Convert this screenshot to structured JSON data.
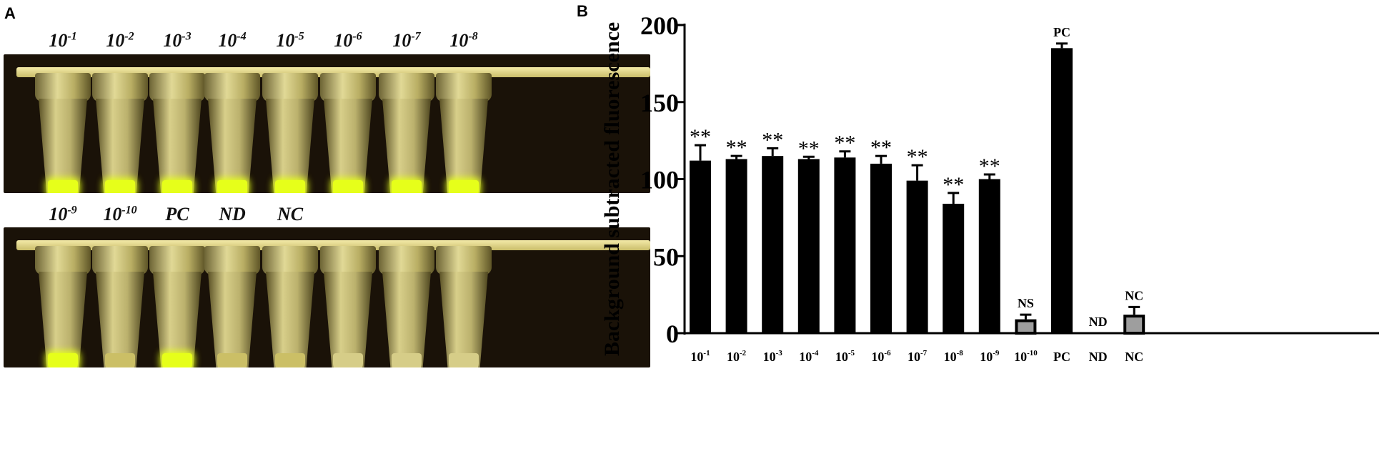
{
  "panel_a": {
    "letter": "A",
    "top_row_labels": [
      {
        "base": "10",
        "exp": "-1"
      },
      {
        "base": "10",
        "exp": "-2"
      },
      {
        "base": "10",
        "exp": "-3"
      },
      {
        "base": "10",
        "exp": "-4"
      },
      {
        "base": "10",
        "exp": "-5"
      },
      {
        "base": "10",
        "exp": "-6"
      },
      {
        "base": "10",
        "exp": "-7"
      },
      {
        "base": "10",
        "exp": "-8"
      }
    ],
    "bottom_row_labels": [
      {
        "base": "10",
        "exp": "-9"
      },
      {
        "base": "10",
        "exp": "-10"
      },
      {
        "base": "PC",
        "exp": ""
      },
      {
        "base": "ND",
        "exp": ""
      },
      {
        "base": "NC",
        "exp": ""
      }
    ],
    "top_tube_fluorescence": [
      "bright",
      "bright",
      "bright",
      "bright",
      "bright",
      "bright",
      "bright",
      "bright"
    ],
    "bottom_tube_fluorescence": [
      "bright",
      "faint",
      "bright",
      "faint",
      "faint",
      "none",
      "none",
      "none"
    ],
    "colors": {
      "bright": "#e6ff1a",
      "faint": "#cbbf66",
      "none": "#d6cd88"
    }
  },
  "panel_b": {
    "letter": "B",
    "chart_data": {
      "type": "bar",
      "ylabel": "Background subtracted fluorescence",
      "ylim": [
        0,
        200
      ],
      "yticks": [
        "0",
        "50",
        "100",
        "150",
        "200"
      ],
      "categories": [
        {
          "base": "10",
          "exp": "-1"
        },
        {
          "base": "10",
          "exp": "-2"
        },
        {
          "base": "10",
          "exp": "-3"
        },
        {
          "base": "10",
          "exp": "-4"
        },
        {
          "base": "10",
          "exp": "-5"
        },
        {
          "base": "10",
          "exp": "-6"
        },
        {
          "base": "10",
          "exp": "-7"
        },
        {
          "base": "10",
          "exp": "-8"
        },
        {
          "base": "10",
          "exp": "-9"
        },
        {
          "base": "10",
          "exp": "-10"
        },
        {
          "base": "PC",
          "exp": ""
        },
        {
          "base": "ND",
          "exp": ""
        },
        {
          "base": "NC",
          "exp": ""
        }
      ],
      "values": [
        112,
        113,
        115,
        113,
        114,
        110,
        99,
        84,
        100,
        9,
        185,
        0,
        12
      ],
      "errors": [
        10,
        2,
        5,
        1.5,
        4,
        5,
        10,
        7,
        3,
        3,
        3,
        0,
        5
      ],
      "annotations": [
        "**",
        "**",
        "**",
        "**",
        "**",
        "**",
        "**",
        "**",
        "**",
        "NS",
        "PC",
        "ND",
        "NC"
      ],
      "bar_colors": [
        "#000000",
        "#000000",
        "#000000",
        "#000000",
        "#000000",
        "#000000",
        "#000000",
        "#000000",
        "#000000",
        "#9e9e9e",
        "#000000",
        "#9e9e9e",
        "#9e9e9e"
      ]
    }
  }
}
